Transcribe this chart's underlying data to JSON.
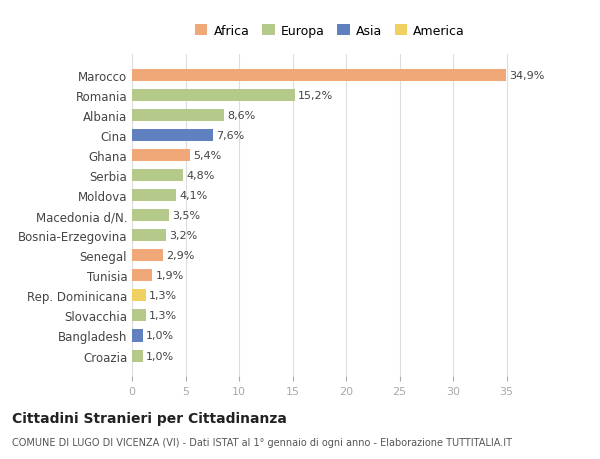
{
  "countries": [
    "Marocco",
    "Romania",
    "Albania",
    "Cina",
    "Ghana",
    "Serbia",
    "Moldova",
    "Macedonia d/N.",
    "Bosnia-Erzegovina",
    "Senegal",
    "Tunisia",
    "Rep. Dominicana",
    "Slovacchia",
    "Bangladesh",
    "Croazia"
  ],
  "values": [
    34.9,
    15.2,
    8.6,
    7.6,
    5.4,
    4.8,
    4.1,
    3.5,
    3.2,
    2.9,
    1.9,
    1.3,
    1.3,
    1.0,
    1.0
  ],
  "labels": [
    "34,9%",
    "15,2%",
    "8,6%",
    "7,6%",
    "5,4%",
    "4,8%",
    "4,1%",
    "3,5%",
    "3,2%",
    "2,9%",
    "1,9%",
    "1,3%",
    "1,3%",
    "1,0%",
    "1,0%"
  ],
  "continents": [
    "Africa",
    "Europa",
    "Europa",
    "Asia",
    "Africa",
    "Europa",
    "Europa",
    "Europa",
    "Europa",
    "Africa",
    "Africa",
    "America",
    "Europa",
    "Asia",
    "Europa"
  ],
  "continent_colors": {
    "Africa": "#F0A878",
    "Europa": "#B5C98A",
    "Asia": "#6080C0",
    "America": "#F0D060"
  },
  "legend_order": [
    "Africa",
    "Europa",
    "Asia",
    "America"
  ],
  "title": "Cittadini Stranieri per Cittadinanza",
  "subtitle": "COMUNE DI LUGO DI VICENZA (VI) - Dati ISTAT al 1° gennaio di ogni anno - Elaborazione TUTTITALIA.IT",
  "xlim": [
    0,
    37
  ],
  "xticks": [
    0,
    5,
    10,
    15,
    20,
    25,
    30,
    35
  ],
  "background_color": "#ffffff",
  "grid_color": "#dddddd"
}
